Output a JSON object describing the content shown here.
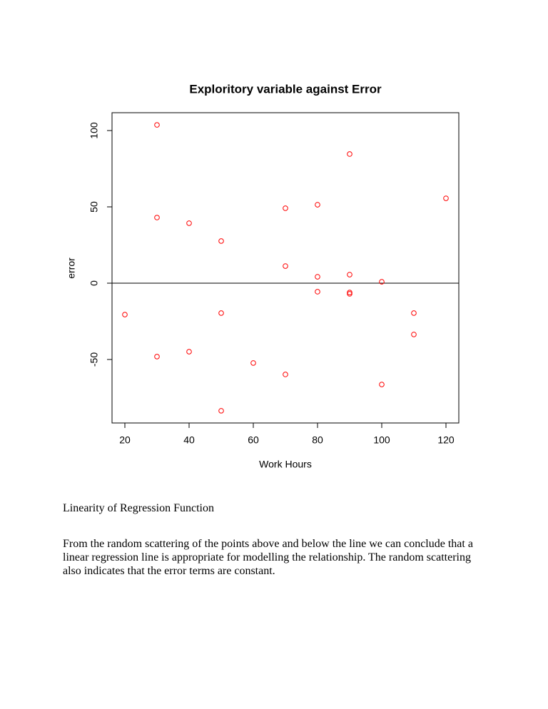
{
  "chart_data": {
    "type": "scatter",
    "title": "Exploritory variable against Error",
    "x_label": "Work Hours",
    "y_label": "error",
    "x": [
      30,
      90,
      120,
      30,
      40,
      70,
      80,
      50,
      70,
      80,
      90,
      100,
      80,
      90,
      90,
      20,
      50,
      110,
      110,
      30,
      40,
      60,
      70,
      100,
      50
    ],
    "values": [
      103.7,
      84.6,
      55.6,
      43.0,
      39.3,
      49.1,
      51.4,
      27.6,
      11.2,
      4.2,
      5.6,
      0.9,
      -5.6,
      -6.1,
      -7.0,
      -20.6,
      -19.6,
      -19.6,
      -33.6,
      -48.1,
      -44.9,
      -52.3,
      -59.8,
      -66.4,
      -83.6
    ],
    "color": "#ff0000",
    "reference_line": 0,
    "xlim": [
      16,
      124
    ],
    "ylim": [
      -91.6,
      111.7
    ],
    "xticks": [
      20,
      40,
      60,
      80,
      100,
      120
    ],
    "yticks": [
      -50,
      0,
      50,
      100
    ]
  },
  "document": {
    "heading": "Linearity of Regression Function",
    "paragraph": "From the random scattering of the points above and below the line we can conclude that a linear regression line is appropriate for modelling the relationship. The random scattering also indicates that the error terms are constant."
  }
}
